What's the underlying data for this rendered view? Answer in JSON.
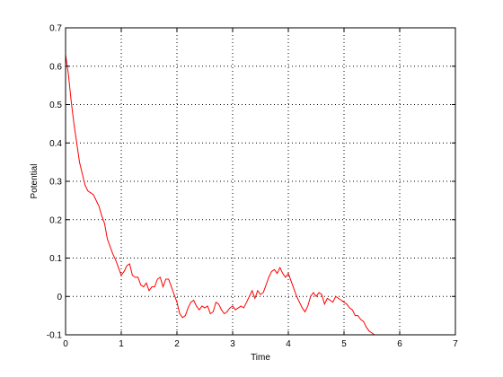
{
  "chart_data": {
    "type": "line",
    "title": "",
    "xlabel": "Time",
    "ylabel": "Potential",
    "xlim": [
      0,
      7
    ],
    "ylim": [
      -0.1,
      0.7
    ],
    "xticks": [
      "0",
      "1",
      "2",
      "3",
      "4",
      "5",
      "6",
      "7"
    ],
    "yticks": [
      "-0.1",
      "0",
      "0.1",
      "0.2",
      "0.3",
      "0.4",
      "0.5",
      "0.6",
      "0.7"
    ],
    "grid": true,
    "grid_style": "dotted",
    "colors": {
      "line": "#ff0000",
      "axes": "#000000",
      "grid": "#000000"
    },
    "series": [
      {
        "color": "#ff0000",
        "x": [
          0,
          0.05,
          0.1,
          0.15,
          0.2,
          0.25,
          0.3,
          0.35,
          0.4,
          0.45,
          0.5,
          0.55,
          0.6,
          0.65,
          0.7,
          0.75,
          0.8,
          0.85,
          0.9,
          0.95,
          1.0,
          1.05,
          1.1,
          1.15,
          1.2,
          1.25,
          1.3,
          1.35,
          1.4,
          1.45,
          1.5,
          1.55,
          1.6,
          1.65,
          1.7,
          1.75,
          1.8,
          1.85,
          1.9,
          1.95,
          2.0,
          2.05,
          2.1,
          2.15,
          2.2,
          2.25,
          2.3,
          2.35,
          2.4,
          2.45,
          2.5,
          2.55,
          2.6,
          2.65,
          2.7,
          2.75,
          2.8,
          2.85,
          2.9,
          2.95,
          3.0,
          3.05,
          3.1,
          3.15,
          3.2,
          3.25,
          3.3,
          3.35,
          3.4,
          3.45,
          3.5,
          3.55,
          3.6,
          3.65,
          3.7,
          3.75,
          3.8,
          3.85,
          3.9,
          3.95,
          4.0,
          4.05,
          4.1,
          4.15,
          4.2,
          4.25,
          4.3,
          4.35,
          4.4,
          4.45,
          4.5,
          4.55,
          4.6,
          4.65,
          4.7,
          4.75,
          4.8,
          4.85,
          4.9,
          4.95,
          5.0,
          5.05,
          5.1,
          5.15,
          5.2,
          5.25,
          5.3,
          5.35,
          5.4,
          5.45,
          5.5,
          5.55,
          5.6,
          5.65,
          5.7,
          5.75,
          5.8,
          5.85,
          5.9,
          5.95,
          6.0,
          6.05,
          6.1,
          6.15,
          6.2,
          6.25
        ],
        "y": [
          0.63,
          0.58,
          0.51,
          0.45,
          0.4,
          0.35,
          0.32,
          0.29,
          0.275,
          0.27,
          0.265,
          0.25,
          0.235,
          0.21,
          0.19,
          0.15,
          0.13,
          0.11,
          0.095,
          0.075,
          0.055,
          0.065,
          0.08,
          0.085,
          0.055,
          0.05,
          0.05,
          0.03,
          0.025,
          0.035,
          0.015,
          0.025,
          0.025,
          0.045,
          0.05,
          0.025,
          0.045,
          0.045,
          0.025,
          0.005,
          -0.015,
          -0.045,
          -0.055,
          -0.05,
          -0.03,
          -0.015,
          -0.01,
          -0.025,
          -0.035,
          -0.025,
          -0.03,
          -0.025,
          -0.045,
          -0.04,
          -0.015,
          -0.02,
          -0.035,
          -0.045,
          -0.04,
          -0.03,
          -0.025,
          -0.035,
          -0.03,
          -0.025,
          -0.03,
          -0.015,
          0.0,
          0.015,
          -0.005,
          0.015,
          0.005,
          0.01,
          0.03,
          0.05,
          0.065,
          0.07,
          0.06,
          0.075,
          0.06,
          0.05,
          0.06,
          0.04,
          0.02,
          0.0,
          -0.015,
          -0.03,
          -0.04,
          -0.025,
          0.0,
          0.01,
          0.0,
          0.01,
          0.005,
          -0.02,
          -0.005,
          -0.01,
          -0.015,
          0.0,
          -0.005,
          -0.01,
          -0.015,
          -0.02,
          -0.03,
          -0.035,
          -0.05,
          -0.05,
          -0.06,
          -0.065,
          -0.08,
          -0.09,
          -0.095,
          -0.1,
          -0.1,
          -0.1,
          -0.1,
          -0.1,
          -0.1,
          -0.1,
          -0.1,
          -0.1,
          -0.1,
          -0.1,
          -0.1,
          -0.1,
          -0.1,
          -0.1
        ]
      }
    ]
  }
}
